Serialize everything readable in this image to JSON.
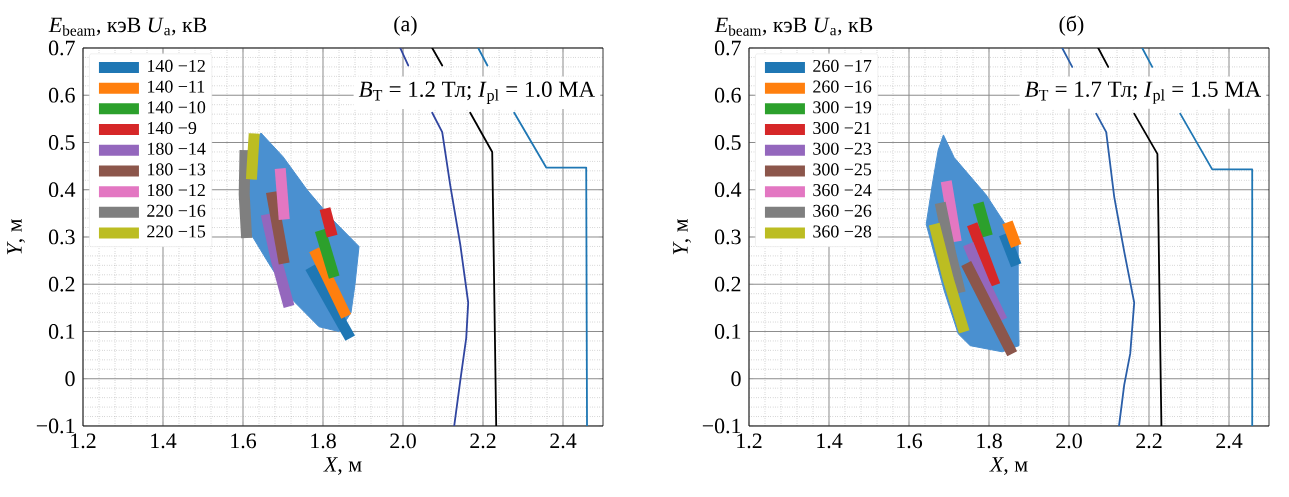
{
  "chart_data": [
    {
      "type": "line",
      "title": "(а)",
      "legend_title": "*E*$_{beam}$, кэВ *U*$_{a}$, кВ",
      "xlabel": "*X*, м",
      "ylabel": "*Y*, м",
      "annotations": [
        "*B*$_{T}$  = 1.2 Тл; *I*$_{pl}$ = 1.0 МА"
      ],
      "xlim": [
        1.2,
        2.5
      ],
      "ylim": [
        -0.1,
        0.7
      ],
      "xticks": [
        1.2,
        1.4,
        1.6,
        1.8,
        {
          "value": 2,
          "label": "2.0"
        },
        2.2,
        2.4
      ],
      "yticks": [
        {
          "value": -0.1,
          "label": "−0.1"
        },
        0,
        0.1,
        0.2,
        0.3,
        0.4,
        0.5,
        0.6,
        0.7
      ],
      "grid": true,
      "legend": "top left",
      "series": [
        {
          "type": "area",
          "color": "#4a90d0",
          "x": [
            1.645,
            1.7,
            1.76,
            1.82,
            1.89,
            1.88,
            1.87,
            1.84,
            1.79,
            1.72,
            1.66,
            1.61,
            1.6,
            1.61
          ],
          "values": [
            0.52,
            0.47,
            0.4,
            0.34,
            0.28,
            0.2,
            0.14,
            0.1,
            0.11,
            0.17,
            0.25,
            0.32,
            0.4,
            0.48
          ]
        },
        {
          "name": "140 −12",
          "color": "#1f77b4",
          "x": [
            1.768,
            1.868
          ],
          "values": [
            0.236,
            0.086
          ]
        },
        {
          "name": "140 −11",
          "color": "#ff7f0e",
          "x": [
            1.778,
            1.858
          ],
          "values": [
            0.273,
            0.132
          ]
        },
        {
          "name": "140 −10",
          "color": "#2ca02c",
          "x": [
            1.793,
            1.828
          ],
          "values": [
            0.314,
            0.215
          ]
        },
        {
          "name": "140 −9",
          "color": "#d62728",
          "x": [
            1.805,
            1.823
          ],
          "values": [
            0.36,
            0.302
          ]
        },
        {
          "name": "180 −14",
          "color": "#9467bd",
          "x": [
            1.658,
            1.683,
            1.715
          ],
          "values": [
            0.348,
            0.252,
            0.153
          ]
        },
        {
          "name": "180 −13",
          "color": "#8c564b",
          "x": [
            1.671,
            1.703
          ],
          "values": [
            0.395,
            0.244
          ]
        },
        {
          "name": "180 −12",
          "color": "#e377c2",
          "x": [
            1.693,
            1.703
          ],
          "values": [
            0.445,
            0.337
          ]
        },
        {
          "name": "220 −16",
          "color": "#7f7f7f",
          "x": [
            1.605,
            1.603,
            1.609
          ],
          "values": [
            0.484,
            0.39,
            0.298
          ]
        },
        {
          "name": "220 −15",
          "color": "#bcbd22",
          "x": [
            1.628,
            1.621
          ],
          "values": [
            0.519,
            0.422
          ]
        },
        {
          "color": "#3045a0",
          "x": [
            1.993,
            2.013,
            2.04,
            2.073,
            2.098,
            2.118,
            2.143,
            2.163,
            2.158,
            2.143,
            2.128
          ],
          "values": [
            0.7,
            0.663,
            null,
            0.563,
            0.522,
            0.41,
            0.285,
            0.161,
            0.086,
            -0.005,
            -0.1
          ]
        },
        {
          "color": "#000000",
          "x": [
            2.073,
            2.098,
            2.13,
            2.168,
            2.223,
            2.233
          ],
          "values": [
            0.7,
            0.663,
            null,
            0.563,
            0.48,
            -0.1
          ]
        },
        {
          "color": "#1f77b4",
          "x": [
            2.188,
            2.211,
            2.24,
            2.278,
            2.358,
            2.458,
            2.46
          ],
          "values": [
            0.7,
            0.663,
            null,
            0.563,
            0.447,
            0.447,
            -0.1
          ]
        }
      ]
    },
    {
      "type": "line",
      "title": "(б)",
      "legend_title": "*E*$_{beam}$, кэВ *U*$_{a}$, кВ",
      "xlabel": "*X*, м",
      "ylabel": "*Y*, м",
      "annotations": [
        "*B*$_{T}$  = 1.7 Тл; *I*$_{pl}$ = 1.5 МА"
      ],
      "xlim": [
        1.2,
        2.5
      ],
      "ylim": [
        -0.1,
        0.7
      ],
      "xticks": [
        1.2,
        1.4,
        1.6,
        1.8,
        {
          "value": 2,
          "label": "2.0"
        },
        2.2,
        2.4
      ],
      "yticks": [
        {
          "value": -0.1,
          "label": "−0.1"
        },
        0,
        0.1,
        0.2,
        0.3,
        0.4,
        0.5,
        0.6,
        0.7
      ],
      "grid": true,
      "legend": "top left",
      "series": [
        {
          "type": "area",
          "color": "#4a90d0",
          "x": [
            1.686,
            1.713,
            1.793,
            1.873,
            1.873,
            1.875,
            1.833,
            1.753,
            1.723,
            1.688,
            1.643,
            1.658,
            1.673
          ],
          "values": [
            0.516,
            0.468,
            0.389,
            0.285,
            0.2,
            0.07,
            0.057,
            0.07,
            0.095,
            0.186,
            0.327,
            0.41,
            0.484
          ]
        },
        {
          "name": "260 −17",
          "color": "#1f77b4",
          "x": [
            1.838,
            1.868
          ],
          "values": [
            0.306,
            0.24
          ]
        },
        {
          "name": "260 −16",
          "color": "#ff7f0e",
          "x": [
            1.846,
            1.868
          ],
          "values": [
            0.331,
            0.281
          ]
        },
        {
          "name": "300 −19",
          "color": "#2ca02c",
          "x": [
            1.773,
            1.796
          ],
          "values": [
            0.372,
            0.302
          ]
        },
        {
          "name": "300 −21",
          "color": "#d62728",
          "x": [
            1.758,
            1.815
          ],
          "values": [
            0.327,
            0.198
          ]
        },
        {
          "name": "300 −23",
          "color": "#9467bd",
          "x": [
            1.748,
            1.788,
            1.833
          ],
          "values": [
            0.285,
            0.203,
            0.124
          ]
        },
        {
          "name": "300 −25",
          "color": "#8c564b",
          "x": [
            1.743,
            1.803,
            1.858
          ],
          "values": [
            0.244,
            0.144,
            0.053
          ]
        },
        {
          "name": "360 −24",
          "color": "#e377c2",
          "x": [
            1.693,
            1.718
          ],
          "values": [
            0.418,
            0.29
          ]
        },
        {
          "name": "360 −26",
          "color": "#7f7f7f",
          "x": [
            1.678,
            1.703,
            1.728
          ],
          "values": [
            0.372,
            0.269,
            0.182
          ]
        },
        {
          "name": "360 −28",
          "color": "#bcbd22",
          "x": [
            1.663,
            1.698,
            1.738
          ],
          "values": [
            0.327,
            0.211,
            0.099
          ]
        },
        {
          "color": "#2a5ea8",
          "x": [
            1.983,
            2.008,
            2.04,
            2.068,
            2.093,
            2.113,
            2.138,
            2.163,
            2.153,
            2.138,
            2.125
          ],
          "values": [
            0.7,
            0.66,
            null,
            0.561,
            0.522,
            0.385,
            0.269,
            0.161,
            0.053,
            -0.013,
            -0.1
          ]
        },
        {
          "color": "#000000",
          "x": [
            2.073,
            2.098,
            2.13,
            2.163,
            2.221,
            2.231
          ],
          "values": [
            0.7,
            0.66,
            null,
            0.561,
            0.476,
            -0.1
          ]
        },
        {
          "color": "#1f77b4",
          "x": [
            2.183,
            2.208,
            2.24,
            2.278,
            2.358,
            2.458,
            2.458
          ],
          "values": [
            0.7,
            0.66,
            null,
            0.561,
            0.443,
            0.443,
            -0.1
          ]
        }
      ]
    }
  ]
}
